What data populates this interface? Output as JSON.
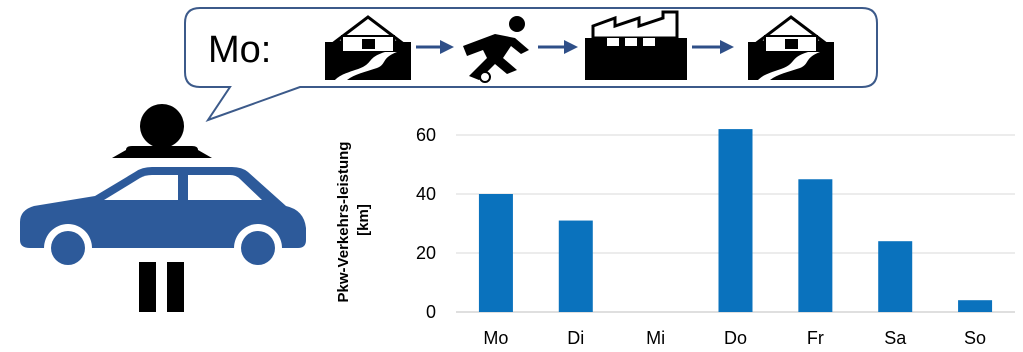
{
  "bubble": {
    "day_label": "Mo:",
    "activity_icons": [
      "home-icon",
      "arrow-right-icon",
      "sports-icon",
      "arrow-right-icon",
      "factory-icon",
      "arrow-right-icon",
      "home-icon"
    ],
    "border_color": "#3c5a8a",
    "arrow_color": "#2f4f88"
  },
  "figure": {
    "icons": [
      "person-icon",
      "car-icon"
    ],
    "car_color": "#2d5a9a"
  },
  "chart_data": {
    "type": "bar",
    "categories": [
      "Mo",
      "Di",
      "Mi",
      "Do",
      "Fr",
      "Sa",
      "So"
    ],
    "values": [
      40,
      31,
      0,
      62,
      45,
      24,
      4
    ],
    "ylabel_line1": "Pkw-Verkehrs-leistung",
    "ylabel_line2": "[km]",
    "ylim": [
      0,
      70
    ],
    "yticks": [
      0,
      20,
      40,
      60
    ],
    "grid": true,
    "bar_color": "#0a72bd",
    "grid_color": "#d9d9d9"
  }
}
